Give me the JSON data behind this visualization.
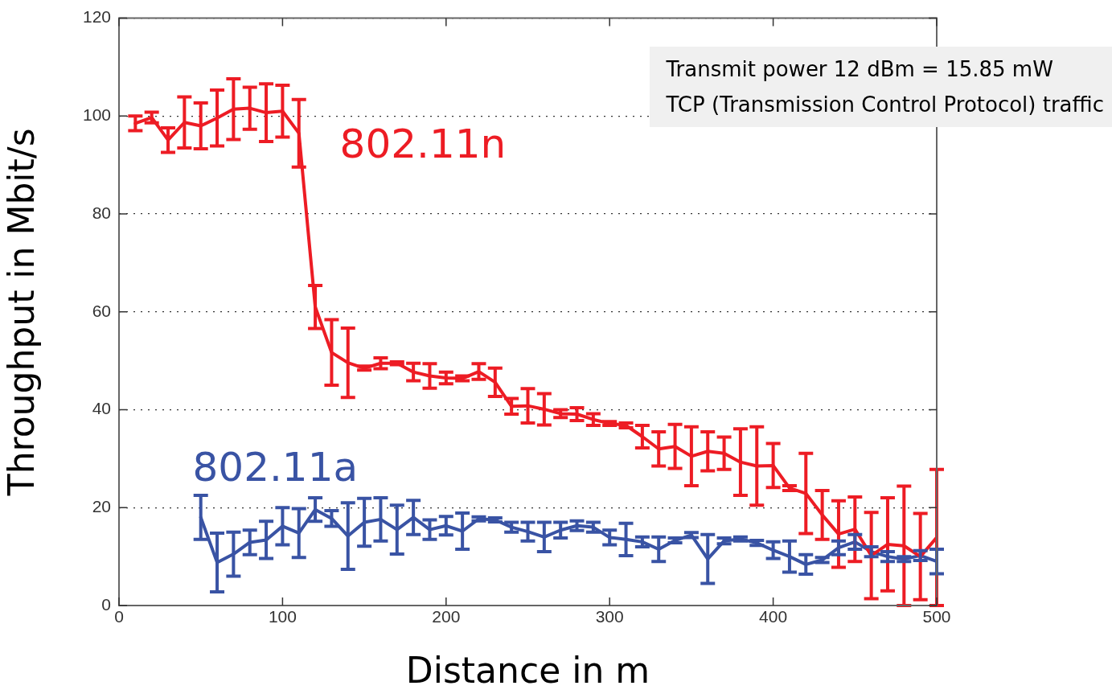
{
  "chart_data": {
    "type": "line",
    "xlabel": "Distance in m",
    "ylabel": "Throughput in Mbit/s",
    "xlim": [
      0,
      500
    ],
    "xticks": [
      0,
      100,
      200,
      300,
      400,
      500
    ],
    "ylim": [
      0,
      120
    ],
    "yticks": [
      0,
      20,
      40,
      60,
      80,
      100,
      120
    ],
    "grid": "y",
    "legend": false,
    "marker": "none",
    "line_style": "solid",
    "annotations": [
      "Transmit power 12 dBm = 15.85 mW",
      "TCP (Transmission  Control  Protocol) traffic"
    ],
    "series": [
      {
        "name": "802.11n",
        "color": "#ed1c24",
        "x": [
          10,
          20,
          30,
          40,
          50,
          60,
          70,
          80,
          90,
          100,
          110,
          120,
          130,
          140,
          150,
          160,
          170,
          180,
          190,
          200,
          210,
          220,
          230,
          240,
          250,
          260,
          270,
          280,
          290,
          300,
          310,
          320,
          330,
          340,
          350,
          360,
          370,
          380,
          390,
          400,
          410,
          420,
          430,
          440,
          450,
          460,
          470,
          480,
          490,
          500
        ],
        "values": [
          98.5,
          99.7,
          95.1,
          98.7,
          98,
          99.6,
          101.4,
          101.6,
          100.7,
          101,
          96.5,
          61,
          51.7,
          49.6,
          48.5,
          49.5,
          49.5,
          47.7,
          46.9,
          46.5,
          46.4,
          47.8,
          45.6,
          40.7,
          40.8,
          40.1,
          39.2,
          39.1,
          38,
          37.2,
          36.8,
          34.5,
          32,
          32.5,
          30.5,
          31.5,
          31.1,
          29.3,
          28.5,
          28.6,
          24,
          22.9,
          18.5,
          14.6,
          15.6,
          10.2,
          12.5,
          12.2,
          10,
          13.9
        ],
        "errors": [
          1.5,
          1.1,
          2.5,
          5.2,
          4.7,
          5.7,
          6.2,
          4.3,
          5.9,
          5.3,
          6.9,
          4.4,
          6.7,
          7.1,
          0.4,
          1.1,
          0.3,
          1.8,
          2.5,
          1.2,
          0.5,
          1.6,
          2.9,
          1.6,
          3.5,
          3.2,
          0.8,
          1.3,
          1.2,
          0.4,
          0.5,
          2.3,
          3.5,
          4.5,
          6,
          4,
          3.3,
          6.8,
          8,
          4.5,
          0.5,
          8.2,
          5,
          6.8,
          6.6,
          8.8,
          9.5,
          12.2,
          8.8,
          13.9
        ]
      },
      {
        "name": "802.11a",
        "color": "#3953a4",
        "x": [
          50,
          60,
          70,
          80,
          90,
          100,
          110,
          120,
          130,
          140,
          150,
          160,
          170,
          180,
          190,
          200,
          210,
          220,
          230,
          240,
          250,
          260,
          270,
          280,
          290,
          300,
          310,
          320,
          330,
          340,
          350,
          360,
          370,
          380,
          390,
          400,
          410,
          420,
          430,
          440,
          450,
          460,
          470,
          480,
          490,
          500
        ],
        "values": [
          18,
          8.8,
          10.5,
          12.9,
          13.4,
          16.2,
          14.8,
          19.6,
          17.8,
          14.2,
          17,
          17.6,
          15.5,
          18,
          15.5,
          16.3,
          15.2,
          17.7,
          17.5,
          16,
          15.1,
          14,
          15.4,
          16.3,
          16,
          13.9,
          13.5,
          13,
          11.5,
          13.3,
          14.4,
          9.5,
          13.2,
          13.6,
          12.8,
          11.3,
          10,
          8.4,
          9.3,
          11.8,
          13,
          11,
          10,
          9.5,
          10.2,
          9
        ],
        "errors": [
          4.5,
          6,
          4.5,
          2.5,
          3.8,
          3.8,
          5,
          2.4,
          1.6,
          6.8,
          4.9,
          4.4,
          5,
          3.5,
          2,
          1.9,
          3.7,
          0.4,
          0.4,
          1,
          1.9,
          3,
          1.6,
          1,
          1,
          1.5,
          3.3,
          1,
          2.5,
          0.5,
          0.5,
          5,
          0.6,
          0.4,
          0.5,
          1.7,
          3.2,
          2,
          0.5,
          1.4,
          1.5,
          1,
          1,
          0.5,
          1,
          2.5
        ]
      }
    ]
  }
}
